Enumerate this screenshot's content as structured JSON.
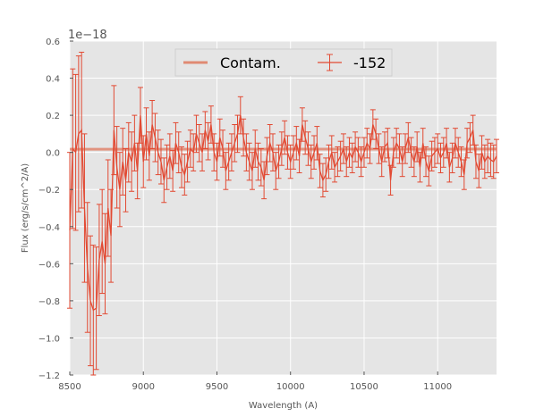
{
  "chart_data": {
    "type": "line",
    "title": "",
    "xlabel": "Wavelength (A)",
    "ylabel": "Flux (erg/s/cm^2/A)",
    "y_offset_label": "1e−18",
    "xlim": [
      8500,
      11400
    ],
    "ylim": [
      -1.2,
      0.6
    ],
    "xticks": [
      8500,
      9000,
      9500,
      10000,
      10500,
      11000
    ],
    "xtick_labels": [
      "8500",
      "9000",
      "9500",
      "10000",
      "10500",
      "11000"
    ],
    "yticks": [
      -1.2,
      -1.0,
      -0.8,
      -0.6,
      -0.4,
      -0.2,
      0.0,
      0.2,
      0.4,
      0.6
    ],
    "ytick_labels": [
      "−1.2",
      "−1.0",
      "−0.8",
      "−0.6",
      "−0.4",
      "−0.2",
      "0.0",
      "0.2",
      "0.4",
      "0.6"
    ],
    "grid": true,
    "legend_position": "top-center",
    "background_color": "#e5e5e5",
    "series": [
      {
        "name": "Contam.",
        "kind": "line",
        "color": "#e08a73",
        "x": [
          8500,
          11400
        ],
        "y": [
          0.017,
          0.018
        ]
      },
      {
        "name": "-152",
        "kind": "errorbar",
        "color": "#e24a33",
        "x": [
          8500,
          8520,
          8540,
          8560,
          8580,
          8600,
          8620,
          8640,
          8660,
          8680,
          8700,
          8720,
          8740,
          8760,
          8780,
          8800,
          8820,
          8840,
          8860,
          8880,
          8900,
          8920,
          8940,
          8960,
          8980,
          9000,
          9020,
          9040,
          9060,
          9080,
          9100,
          9120,
          9140,
          9160,
          9180,
          9200,
          9220,
          9240,
          9260,
          9280,
          9300,
          9320,
          9340,
          9360,
          9380,
          9400,
          9420,
          9440,
          9460,
          9480,
          9500,
          9520,
          9540,
          9560,
          9580,
          9600,
          9620,
          9640,
          9660,
          9680,
          9700,
          9720,
          9740,
          9760,
          9780,
          9800,
          9820,
          9840,
          9860,
          9880,
          9900,
          9920,
          9940,
          9960,
          9980,
          10000,
          10020,
          10040,
          10060,
          10080,
          10100,
          10120,
          10140,
          10160,
          10180,
          10200,
          10220,
          10240,
          10260,
          10280,
          10300,
          10320,
          10340,
          10360,
          10380,
          10400,
          10420,
          10440,
          10460,
          10480,
          10500,
          10520,
          10540,
          10560,
          10580,
          10600,
          10620,
          10640,
          10660,
          10680,
          10700,
          10720,
          10740,
          10760,
          10780,
          10800,
          10820,
          10840,
          10860,
          10880,
          10900,
          10920,
          10940,
          10960,
          10980,
          11000,
          11020,
          11040,
          11060,
          11080,
          11100,
          11120,
          11140,
          11160,
          11180,
          11200,
          11220,
          11240,
          11260,
          11280,
          11300,
          11320,
          11340,
          11360,
          11380,
          11400
        ],
        "y": [
          -0.42,
          0.02,
          0.0,
          0.1,
          0.12,
          -0.3,
          -0.62,
          -0.8,
          -0.85,
          -0.84,
          -0.58,
          -0.48,
          -0.6,
          -0.3,
          -0.45,
          0.12,
          -0.08,
          -0.2,
          -0.05,
          -0.15,
          0.0,
          -0.05,
          0.05,
          -0.1,
          0.2,
          -0.05,
          0.1,
          -0.02,
          0.15,
          0.08,
          0.0,
          -0.05,
          -0.15,
          -0.08,
          -0.02,
          -0.1,
          0.05,
          0.0,
          -0.08,
          -0.12,
          -0.05,
          0.02,
          0.0,
          0.1,
          0.05,
          0.0,
          0.12,
          0.06,
          0.15,
          0.0,
          -0.05,
          0.08,
          0.02,
          -0.1,
          -0.05,
          0.0,
          0.05,
          0.1,
          0.2,
          0.08,
          0.0,
          -0.05,
          -0.1,
          0.02,
          -0.05,
          -0.08,
          -0.15,
          -0.02,
          0.05,
          0.0,
          -0.1,
          -0.05,
          0.02,
          0.08,
          0.0,
          -0.05,
          0.0,
          0.05,
          -0.02,
          0.15,
          0.08,
          0.02,
          -0.05,
          0.0,
          0.05,
          -0.1,
          -0.15,
          -0.12,
          -0.05,
          0.0,
          -0.08,
          -0.05,
          -0.02,
          0.02,
          -0.05,
          0.0,
          -0.03,
          0.03,
          0.0,
          -0.05,
          0.0,
          0.05,
          0.02,
          0.15,
          0.1,
          0.02,
          -0.05,
          0.03,
          0.05,
          -0.15,
          0.0,
          0.05,
          0.02,
          -0.05,
          0.02,
          0.08,
          0.0,
          -0.05,
          0.03,
          -0.08,
          0.05,
          -0.05,
          -0.1,
          -0.02,
          0.0,
          0.02,
          -0.03,
          0.0,
          0.05,
          -0.08,
          -0.03,
          0.05,
          0.0,
          -0.05,
          -0.12,
          0.05,
          0.08,
          0.12,
          -0.05,
          -0.1,
          0.0,
          -0.05,
          -0.02,
          -0.04,
          -0.05,
          -0.02
        ],
        "yerr": [
          0.42,
          0.43,
          0.42,
          0.42,
          0.42,
          0.4,
          0.35,
          0.35,
          0.35,
          0.33,
          0.3,
          0.28,
          0.27,
          0.26,
          0.25,
          0.24,
          0.22,
          0.2,
          0.18,
          0.17,
          0.16,
          0.16,
          0.15,
          0.15,
          0.15,
          0.14,
          0.14,
          0.13,
          0.13,
          0.13,
          0.12,
          0.12,
          0.12,
          0.12,
          0.12,
          0.11,
          0.11,
          0.11,
          0.11,
          0.11,
          0.11,
          0.1,
          0.1,
          0.1,
          0.1,
          0.1,
          0.1,
          0.1,
          0.1,
          0.1,
          0.1,
          0.1,
          0.1,
          0.1,
          0.1,
          0.1,
          0.1,
          0.1,
          0.1,
          0.1,
          0.1,
          0.1,
          0.1,
          0.1,
          0.1,
          0.1,
          0.1,
          0.1,
          0.1,
          0.1,
          0.1,
          0.09,
          0.09,
          0.09,
          0.09,
          0.09,
          0.09,
          0.09,
          0.09,
          0.09,
          0.09,
          0.09,
          0.09,
          0.09,
          0.09,
          0.09,
          0.09,
          0.09,
          0.09,
          0.09,
          0.08,
          0.08,
          0.08,
          0.08,
          0.08,
          0.08,
          0.08,
          0.08,
          0.08,
          0.08,
          0.08,
          0.08,
          0.08,
          0.08,
          0.08,
          0.08,
          0.08,
          0.08,
          0.08,
          0.08,
          0.08,
          0.08,
          0.08,
          0.08,
          0.08,
          0.08,
          0.08,
          0.08,
          0.08,
          0.08,
          0.08,
          0.08,
          0.08,
          0.08,
          0.08,
          0.08,
          0.08,
          0.08,
          0.08,
          0.08,
          0.08,
          0.08,
          0.08,
          0.08,
          0.08,
          0.08,
          0.08,
          0.08,
          0.09,
          0.09,
          0.09,
          0.09,
          0.09,
          0.09,
          0.09,
          0.09
        ]
      }
    ]
  }
}
